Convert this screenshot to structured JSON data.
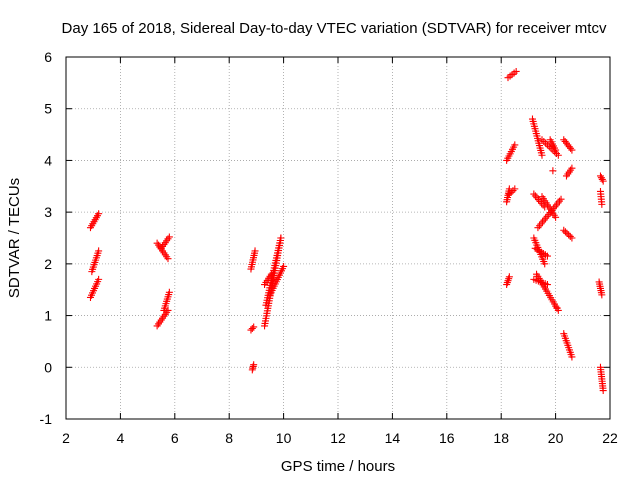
{
  "chart_data": {
    "type": "scatter",
    "title": "Day 165 of 2018, Sidereal Day-to-day VTEC variation (SDTVAR) for receiver mtcv",
    "xlabel": "GPS time / hours",
    "ylabel": "SDTVAR / TECUs",
    "xlim": [
      2,
      22
    ],
    "ylim": [
      -1,
      6
    ],
    "xticks": [
      2,
      4,
      6,
      8,
      10,
      12,
      14,
      16,
      18,
      20,
      22
    ],
    "yticks": [
      -1,
      0,
      1,
      2,
      3,
      4,
      5,
      6
    ],
    "grid": true,
    "marker": "plus",
    "colors": {
      "marker": "#ff0000",
      "grid": "#a0a0a0",
      "axis": "#000000"
    },
    "series": [
      {
        "name": "SDTVAR",
        "segments": [
          {
            "x": [
              2.9,
              3.2
            ],
            "y": [
              2.7,
              2.97
            ]
          },
          {
            "x": [
              2.95,
              3.2
            ],
            "y": [
              1.85,
              2.25
            ]
          },
          {
            "x": [
              2.9,
              3.2
            ],
            "y": [
              1.35,
              1.7
            ]
          },
          {
            "x": [
              5.35,
              5.75
            ],
            "y": [
              2.4,
              2.1
            ]
          },
          {
            "x": [
              5.5,
              5.8
            ],
            "y": [
              2.3,
              2.52
            ]
          },
          {
            "x": [
              5.35,
              5.75
            ],
            "y": [
              0.8,
              1.1
            ]
          },
          {
            "x": [
              5.6,
              5.8
            ],
            "y": [
              1.1,
              1.45
            ]
          },
          {
            "x": [
              8.8,
              8.95
            ],
            "y": [
              1.9,
              2.25
            ]
          },
          {
            "x": [
              8.8,
              8.9
            ],
            "y": [
              0.72,
              0.78
            ]
          },
          {
            "x": [
              8.85,
              8.9
            ],
            "y": [
              -0.05,
              0.05
            ]
          },
          {
            "x": [
              9.3,
              9.9
            ],
            "y": [
              0.8,
              2.5
            ]
          },
          {
            "x": [
              9.35,
              9.9
            ],
            "y": [
              1.2,
              2.5
            ]
          },
          {
            "x": [
              9.3,
              9.55
            ],
            "y": [
              1.6,
              1.8
            ]
          },
          {
            "x": [
              9.5,
              10.0
            ],
            "y": [
              1.4,
              1.95
            ]
          },
          {
            "x": [
              18.2,
              18.3
            ],
            "y": [
              3.2,
              3.45
            ]
          },
          {
            "x": [
              18.3,
              18.5
            ],
            "y": [
              3.35,
              3.45
            ]
          },
          {
            "x": [
              18.2,
              18.5
            ],
            "y": [
              4.0,
              4.3
            ]
          },
          {
            "x": [
              18.25,
              18.55
            ],
            "y": [
              5.6,
              5.72
            ]
          },
          {
            "x": [
              18.2,
              18.3
            ],
            "y": [
              1.6,
              1.75
            ]
          },
          {
            "x": [
              19.15,
              19.5
            ],
            "y": [
              4.8,
              4.1
            ]
          },
          {
            "x": [
              19.5,
              20.1
            ],
            "y": [
              4.4,
              4.1
            ]
          },
          {
            "x": [
              19.8,
              20.0
            ],
            "y": [
              4.4,
              4.2
            ]
          },
          {
            "x": [
              19.2,
              19.6
            ],
            "y": [
              3.35,
              3.1
            ]
          },
          {
            "x": [
              19.35,
              20.2
            ],
            "y": [
              2.7,
              3.25
            ]
          },
          {
            "x": [
              19.5,
              20.0
            ],
            "y": [
              3.3,
              2.9
            ]
          },
          {
            "x": [
              19.2,
              19.6
            ],
            "y": [
              2.5,
              2.0
            ]
          },
          {
            "x": [
              19.25,
              19.7
            ],
            "y": [
              2.3,
              2.15
            ]
          },
          {
            "x": [
              19.2,
              19.7
            ],
            "y": [
              1.7,
              1.6
            ]
          },
          {
            "x": [
              19.3,
              20.1
            ],
            "y": [
              1.8,
              1.1
            ]
          },
          {
            "x": [
              20.3,
              20.6
            ],
            "y": [
              4.4,
              4.2
            ]
          },
          {
            "x": [
              20.4,
              20.6
            ],
            "y": [
              3.7,
              3.85
            ]
          },
          {
            "x": [
              20.3,
              20.6
            ],
            "y": [
              2.65,
              2.5
            ]
          },
          {
            "x": [
              20.3,
              20.6
            ],
            "y": [
              0.65,
              0.2
            ]
          },
          {
            "x": [
              21.65,
              21.75
            ],
            "y": [
              3.7,
              3.6
            ]
          },
          {
            "x": [
              21.65,
              21.7
            ],
            "y": [
              3.4,
              3.15
            ]
          },
          {
            "x": [
              21.6,
              21.7
            ],
            "y": [
              1.65,
              1.4
            ]
          },
          {
            "x": [
              21.65,
              21.75
            ],
            "y": [
              0.0,
              -0.45
            ]
          }
        ],
        "points": [
          {
            "x": 19.9,
            "y": 3.8
          },
          {
            "x": 20.05,
            "y": 1.15
          }
        ]
      }
    ]
  }
}
